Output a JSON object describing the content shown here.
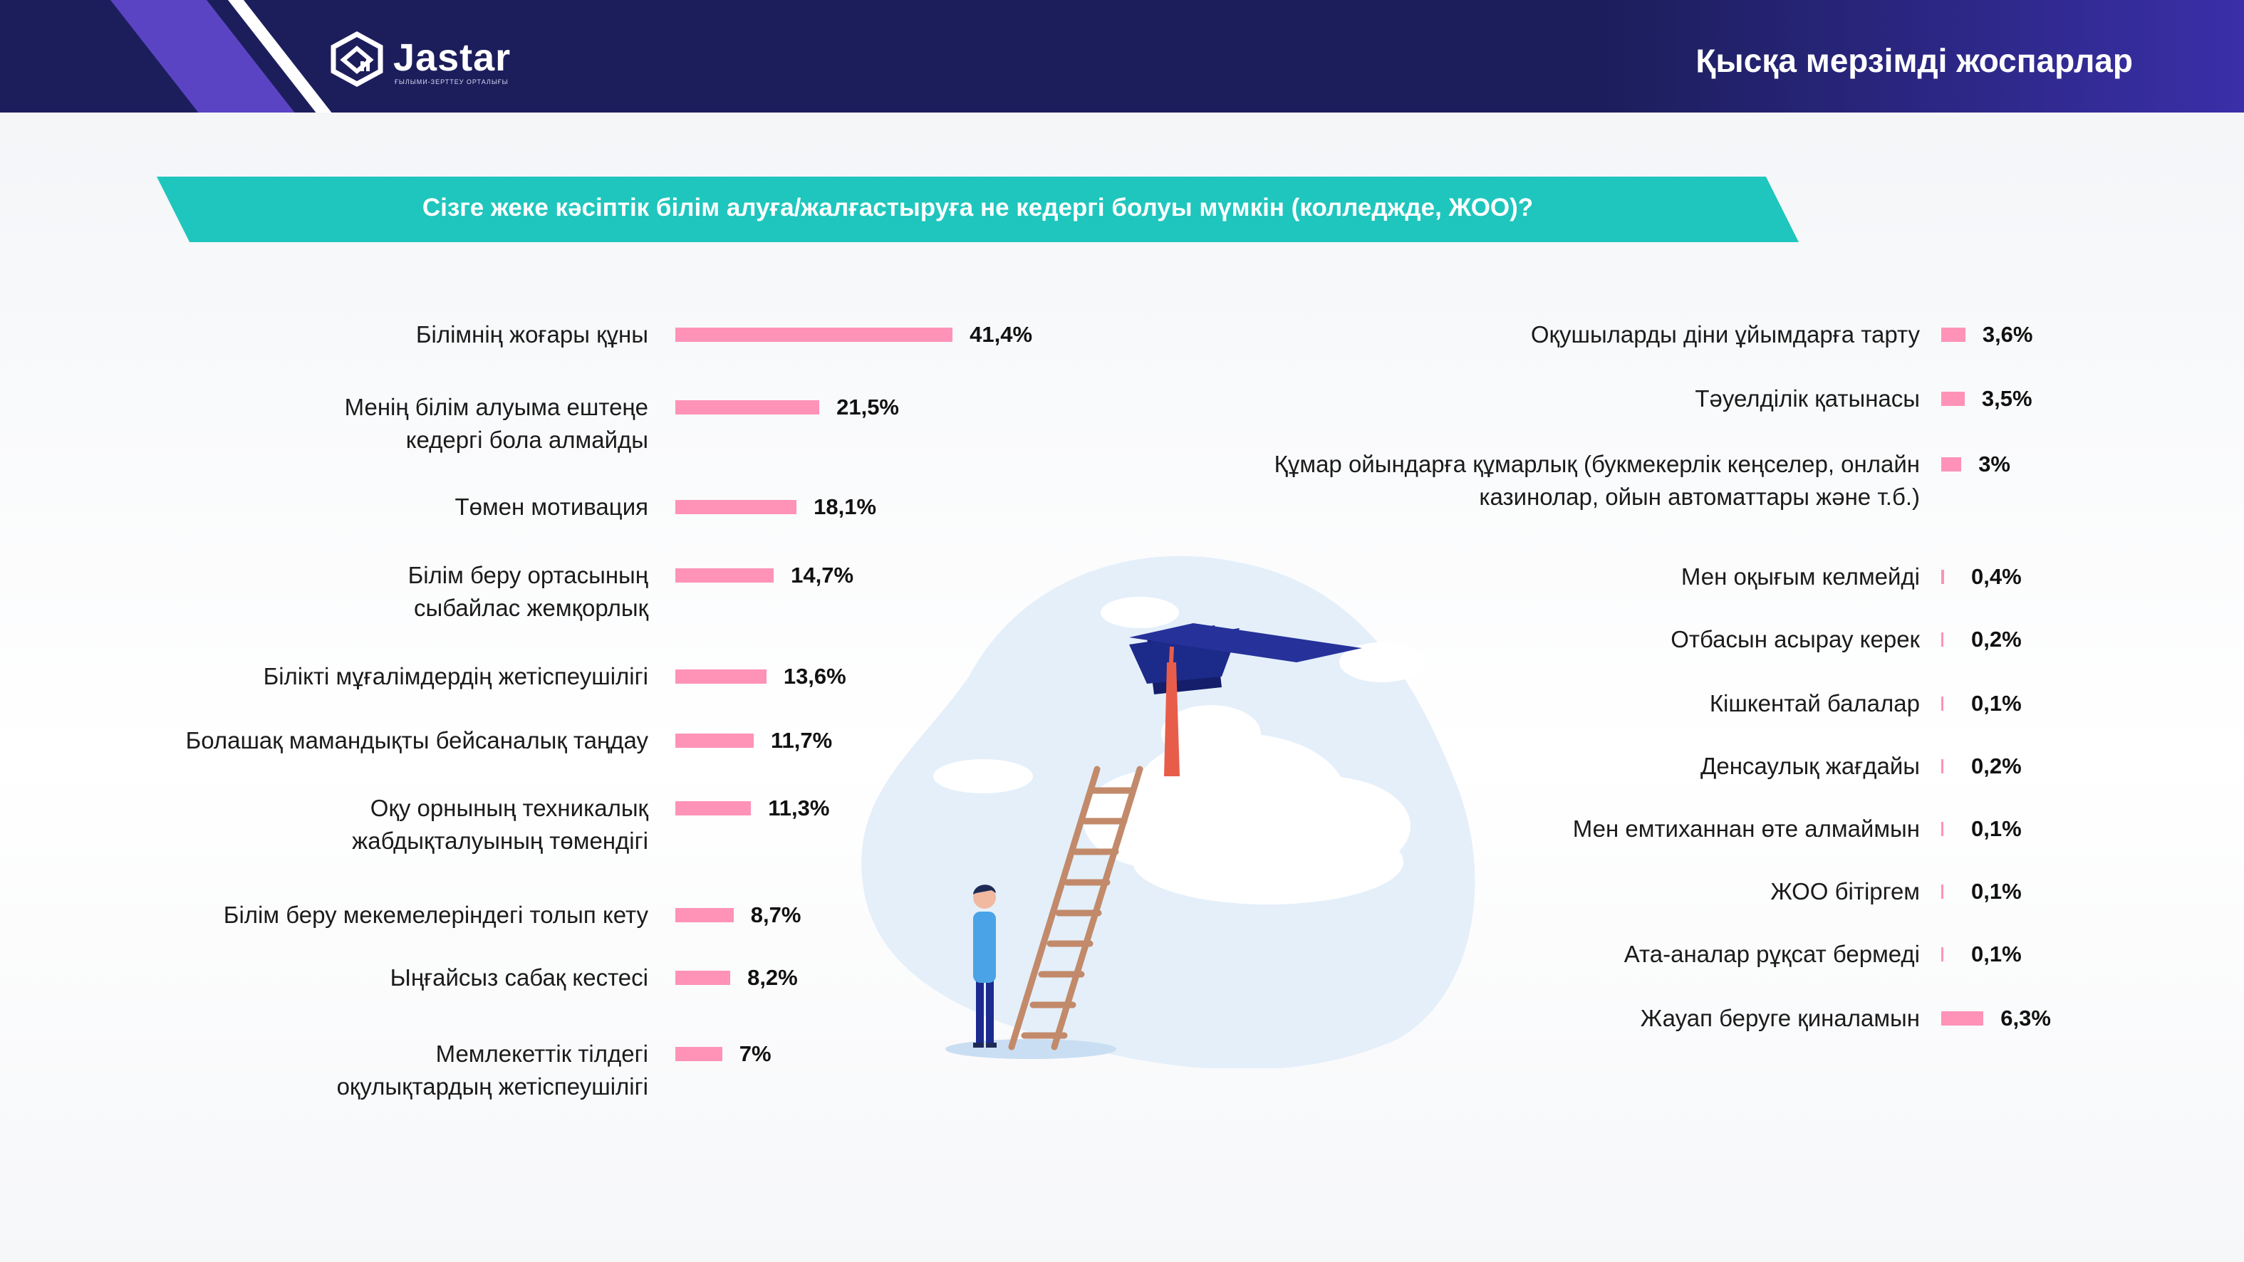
{
  "header": {
    "logo_text": "Jastar",
    "logo_subtext": "ҒЫЛЫМИ-ЗЕРТТЕУ ОРТАЛЫҒЫ",
    "title": "Қысқа мерзімді жоспарлар"
  },
  "question": "Сізге жеке кәсіптік білім алуға/жалғастыруға не кедергі болуы мүмкін (колледжде, ЖОО)?",
  "colors": {
    "bar": "#ff92b7",
    "banner": "#1fc6bd",
    "header": "#1c1e5c"
  },
  "chart_data": {
    "type": "bar",
    "orientation": "horizontal",
    "unit": "%",
    "groups": [
      {
        "side": "left",
        "categories": [
          "Білімнің жоғары құны",
          "Менің білім алуыма ештеңе кедергі бола алмайды",
          "Төмен мотивация",
          "Білім беру ортасының сыбайлас жемқорлық",
          "Білікті мұғалімдердің жетіспеушілігі",
          "Болашақ мамандықты бейсаналық таңдау",
          "Оқу орнының техникалық жабдықталуының төмендігі",
          "Білім беру мекемелеріндегі толып кету",
          "Ыңғайсыз сабақ кестесі",
          "Мемлекеттік тілдегі оқулықтардың жетіспеушілігі"
        ],
        "values": [
          41.4,
          21.5,
          18.1,
          14.7,
          13.6,
          11.7,
          11.3,
          8.7,
          8.2,
          7
        ],
        "labels": [
          "41,4%",
          "21,5%",
          "18,1%",
          "14,7%",
          "13,6%",
          "11,7%",
          "11,3%",
          "8,7%",
          "8,2%",
          "7%"
        ]
      },
      {
        "side": "right",
        "categories": [
          "Оқушыларды діни ұйымдарға тарту",
          "Тәуелділік қатынасы",
          "Құмар ойындарға құмарлық (букмекерлік кеңселер, онлайн казинолар, ойын автоматтары және т.б.)",
          "Мен оқығым келмейді",
          "Отбасын асырау керек",
          "Кішкентай балалар",
          "Денсаулық жағдайы",
          "Мен емтиханнан өте алмаймын",
          "ЖОО бітіргем",
          "Ата-аналар рұқсат бермеді",
          "Жауап беруге қиналамын"
        ],
        "values": [
          3.6,
          3.5,
          3,
          0.4,
          0.2,
          0.1,
          0.2,
          0.1,
          0.1,
          0.1,
          6.3
        ],
        "labels": [
          "3,6%",
          "3,5%",
          "3%",
          "0,4%",
          "0,2%",
          "0,1%",
          "0,2%",
          "0,1%",
          "0,1%",
          "0,1%",
          "6,3%"
        ]
      }
    ]
  }
}
